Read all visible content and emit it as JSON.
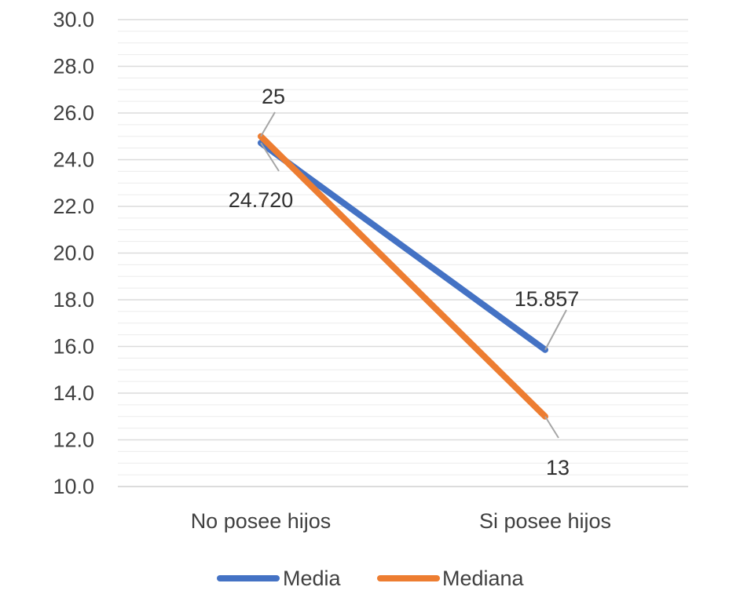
{
  "chart_data": {
    "type": "line",
    "title": "",
    "xlabel": "",
    "ylabel": "",
    "categories": [
      "No posee hijos",
      "Si posee hijos"
    ],
    "ylim": [
      10.0,
      30.0
    ],
    "y_ticks": [
      "10.0",
      "12.0",
      "14.0",
      "16.0",
      "18.0",
      "20.0",
      "22.0",
      "24.0",
      "26.0",
      "28.0",
      "30.0"
    ],
    "y_tick_values": [
      10,
      12,
      14,
      16,
      18,
      20,
      22,
      24,
      26,
      28,
      30
    ],
    "grid": true,
    "legend_position": "bottom",
    "series": [
      {
        "name": "Media",
        "color": "#4472C4",
        "values": [
          24.72,
          15.857
        ],
        "labels": [
          "24.720",
          "15.857"
        ]
      },
      {
        "name": "Mediana",
        "color": "#ED7D31",
        "values": [
          25,
          13
        ],
        "labels": [
          "25",
          "13"
        ]
      }
    ]
  }
}
